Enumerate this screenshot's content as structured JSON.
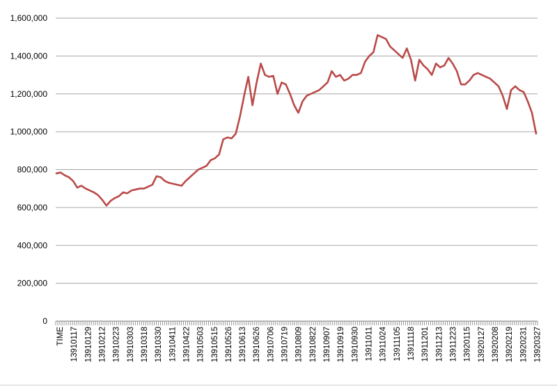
{
  "chart_data": {
    "type": "line",
    "title": "",
    "xlabel": "",
    "ylabel": "",
    "ylim": [
      0,
      1600000
    ],
    "y_ticks": [
      "0",
      "200,000",
      "400,000",
      "600,000",
      "800,000",
      "1,000,000",
      "1,200,000",
      "1,400,000",
      "1,600,000"
    ],
    "x_tick_labels": [
      "TIME",
      "13910117",
      "13910129",
      "13910212",
      "13910223",
      "13910303",
      "13910318",
      "13910330",
      "13910411",
      "13910422",
      "13910503",
      "13910515",
      "13910526",
      "13910613",
      "13910626",
      "13910706",
      "13910719",
      "13910809",
      "13910822",
      "13910907",
      "13910919",
      "13910930",
      "13911011",
      "13911024",
      "13911105",
      "13911118",
      "13911201",
      "13911213",
      "13911223",
      "13920115",
      "13920127",
      "13920208",
      "13920219",
      "13920231",
      "13920327"
    ],
    "grid": true,
    "legend": "none",
    "line_color": "#b94a48",
    "series": [
      {
        "values": [
          780000,
          785000,
          770000,
          760000,
          740000,
          705000,
          715000,
          700000,
          690000,
          680000,
          665000,
          640000,
          610000,
          635000,
          650000,
          660000,
          680000,
          675000,
          690000,
          695000,
          700000,
          700000,
          710000,
          720000,
          765000,
          760000,
          740000,
          730000,
          725000,
          720000,
          715000,
          740000,
          760000,
          780000,
          800000,
          810000,
          820000,
          850000,
          860000,
          880000,
          960000,
          970000,
          965000,
          990000,
          1080000,
          1190000,
          1290000,
          1140000,
          1260000,
          1360000,
          1300000,
          1290000,
          1295000,
          1200000,
          1260000,
          1250000,
          1200000,
          1140000,
          1100000,
          1160000,
          1190000,
          1200000,
          1210000,
          1220000,
          1240000,
          1260000,
          1320000,
          1290000,
          1300000,
          1270000,
          1280000,
          1300000,
          1300000,
          1310000,
          1370000,
          1400000,
          1420000,
          1510000,
          1500000,
          1490000,
          1450000,
          1430000,
          1410000,
          1390000,
          1440000,
          1380000,
          1270000,
          1380000,
          1350000,
          1330000,
          1300000,
          1360000,
          1340000,
          1350000,
          1390000,
          1360000,
          1320000,
          1250000,
          1250000,
          1270000,
          1300000,
          1310000,
          1300000,
          1290000,
          1280000,
          1260000,
          1240000,
          1190000,
          1120000,
          1220000,
          1240000,
          1220000,
          1210000,
          1160000,
          1100000,
          990000
        ]
      }
    ]
  }
}
